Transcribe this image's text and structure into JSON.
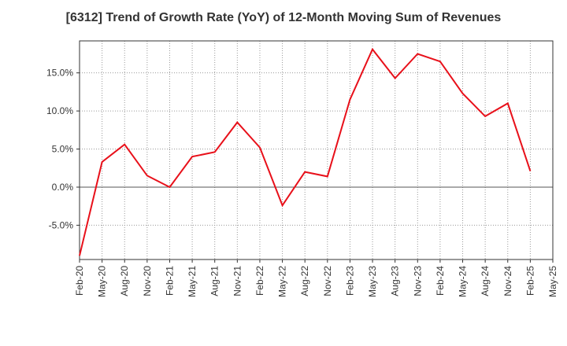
{
  "chart_data": {
    "type": "line",
    "title": "[6312]  Trend of Growth Rate (YoY) of 12-Month Moving Sum of Revenues",
    "xlabel": "",
    "ylabel": "",
    "x_tick_labels": [
      "Feb-20",
      "May-20",
      "Aug-20",
      "Nov-20",
      "Feb-21",
      "May-21",
      "Aug-21",
      "Nov-21",
      "Feb-22",
      "May-22",
      "Aug-22",
      "Nov-22",
      "Feb-23",
      "May-23",
      "Aug-23",
      "Nov-23",
      "Feb-24",
      "May-24",
      "Aug-24",
      "Nov-24",
      "Feb-25",
      "May-25"
    ],
    "y_tick_values": [
      -5.0,
      0.0,
      5.0,
      10.0,
      15.0
    ],
    "y_tick_labels": [
      "-5.0%",
      "0.0%",
      "5.0%",
      "10.0%",
      "15.0%"
    ],
    "ylim": [
      -9.5,
      19.2
    ],
    "grid": true,
    "series": [
      {
        "color": "#e8101a",
        "x": [
          "Feb-20",
          "May-20",
          "Aug-20",
          "Nov-20",
          "Feb-21",
          "May-21",
          "Aug-21",
          "Nov-21",
          "Feb-22",
          "May-22",
          "Aug-22",
          "Nov-22",
          "Feb-23",
          "May-23",
          "Aug-23",
          "Nov-23",
          "Feb-24",
          "May-24",
          "Aug-24",
          "Nov-24",
          "Feb-25"
        ],
        "values": [
          -9.0,
          3.3,
          5.6,
          1.5,
          0.0,
          4.0,
          4.6,
          8.5,
          5.2,
          -2.4,
          2.0,
          1.4,
          11.5,
          18.1,
          14.3,
          17.5,
          16.5,
          12.3,
          9.3,
          11.0,
          2.1
        ]
      }
    ]
  }
}
